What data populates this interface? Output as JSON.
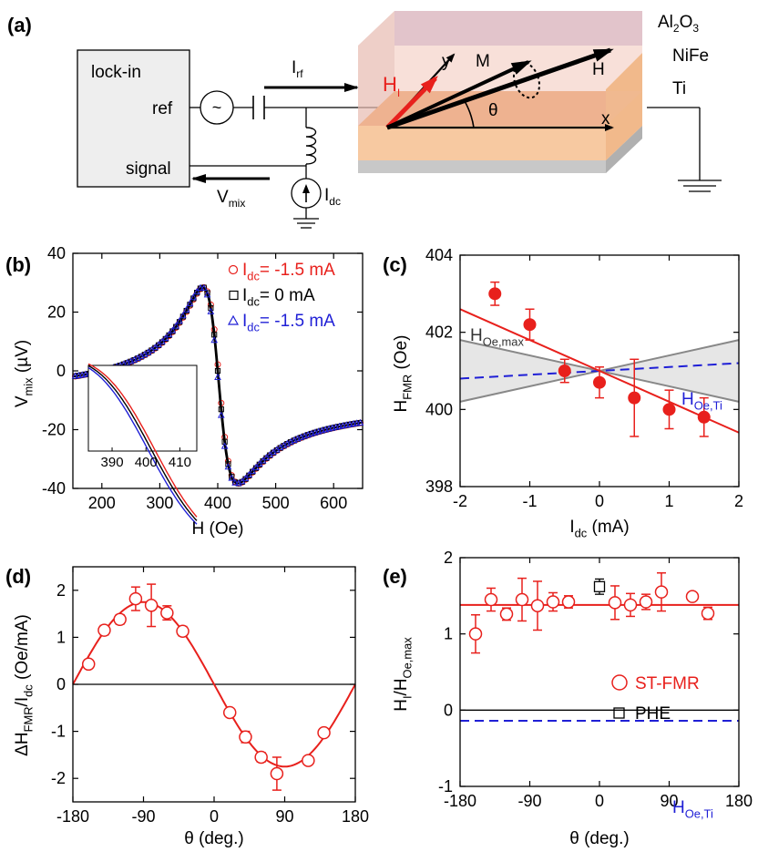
{
  "panel_labels": {
    "a": "(a)",
    "b": "(b)",
    "c": "(c)",
    "d": "(d)",
    "e": "(e)"
  },
  "schematic": {
    "lockin_title": "lock-in",
    "ref_label": "ref",
    "signal_label": "signal",
    "source_symbol": "~",
    "irf_main": "I",
    "irf_sub": "rf",
    "vmix_main": "V",
    "vmix_sub": "mix",
    "idc_main": "I",
    "idc_sub": "dc",
    "layer_top_main": "Al",
    "layer_top_sub1": "2",
    "layer_top_mid": "O",
    "layer_top_sub2": "3",
    "layer_mid": "NiFe",
    "layer_bottom": "Ti",
    "hi_main": "H",
    "hi_sub": "I",
    "y_label": "y",
    "m_label": "M",
    "h_label": "H",
    "x_label": "x",
    "theta_label": "θ",
    "colors": {
      "nife": "#f7c9a1",
      "al2o3": "#d9cfe8",
      "ti": "#c8c8c8",
      "hi_arrow": "#e8201c"
    }
  },
  "chart_data": [
    {
      "id": "b",
      "type": "line",
      "xlabel": "H (Oe)",
      "ylabel_main": "V",
      "ylabel_sub": "mix",
      "ylabel_tail": " (µV)",
      "xlim": [
        150,
        650
      ],
      "ylim": [
        -40,
        40
      ],
      "xticks": [
        "200",
        "300",
        "400",
        "500",
        "600"
      ],
      "yticks": [
        "-40",
        "-20",
        "0",
        "20",
        "40"
      ],
      "legend": [
        {
          "main": "I",
          "sub": "dc",
          "tail": "= -1.5 mA",
          "color": "#e8201c",
          "marker": "circle"
        },
        {
          "main": "I",
          "sub": "dc",
          "tail": "= 0 mA",
          "color": "#000000",
          "marker": "square"
        },
        {
          "main": "I",
          "sub": "dc",
          "tail": "= -1.5 mA",
          "color": "#1f1fd6",
          "marker": "triangle"
        }
      ],
      "series": [
        {
          "name": "-1.5 mA (red)",
          "color": "#e8201c",
          "resonance": 401,
          "linewidth": 30,
          "amplitude": 33
        },
        {
          "name": "0 mA",
          "color": "#000000",
          "resonance": 400,
          "linewidth": 30,
          "amplitude": 33
        },
        {
          "name": "-1.5 mA (blue)",
          "color": "#1f1fd6",
          "resonance": 399,
          "linewidth": 30,
          "amplitude": 33
        }
      ],
      "inset": {
        "xticks": [
          "390",
          "400",
          "410"
        ],
        "xlim": [
          383,
          415
        ]
      }
    },
    {
      "id": "c",
      "type": "scatter",
      "xlabel_main": "I",
      "xlabel_sub": "dc",
      "xlabel_tail": " (mA)",
      "ylabel_main": "H",
      "ylabel_sub": "FMR",
      "ylabel_tail": " (Oe)",
      "xlim": [
        -2,
        2
      ],
      "ylim": [
        398,
        404
      ],
      "xticks": [
        "-2",
        "-1",
        "0",
        "1",
        "2"
      ],
      "yticks": [
        "398",
        "400",
        "402",
        "404"
      ],
      "points": [
        {
          "x": -1.5,
          "y": 403.0,
          "err": 0.3
        },
        {
          "x": -1.0,
          "y": 402.2,
          "err": 0.4
        },
        {
          "x": -0.5,
          "y": 401.0,
          "err": 0.3
        },
        {
          "x": 0.0,
          "y": 400.7,
          "err": 0.4
        },
        {
          "x": 0.5,
          "y": 400.3,
          "err": 1.0
        },
        {
          "x": 1.0,
          "y": 400.0,
          "err": 0.5
        },
        {
          "x": 1.5,
          "y": 399.8,
          "err": 0.5
        }
      ],
      "fit": {
        "slope": -0.8,
        "intercept": 401.0,
        "color": "#e8201c"
      },
      "band": {
        "slope": 0.4,
        "intercept": 401.0,
        "color": "#888888"
      },
      "ti_line": {
        "slope": 0.1,
        "intercept": 401.0,
        "color": "#1f1fd6"
      },
      "annot_oemax_main": "H",
      "annot_oemax_sub": "Oe,max",
      "annot_oeti_main": "H",
      "annot_oeti_sub": "Oe,Ti"
    },
    {
      "id": "d",
      "type": "scatter",
      "xlabel": "θ (deg.)",
      "ylabel_main": "ΔH",
      "ylabel_sub": "FMR",
      "ylabel_mid": "/I",
      "ylabel_sub2": "dc",
      "ylabel_tail": " (Oe/mA)",
      "xlim": [
        -180,
        180
      ],
      "ylim": [
        -2.5,
        2.5
      ],
      "xticks": [
        "-180",
        "-90",
        "0",
        "90",
        "180"
      ],
      "yticks": [
        "-2",
        "-1",
        "0",
        "1",
        "2"
      ],
      "points": [
        {
          "x": -160,
          "y": 0.43,
          "err": 0.08
        },
        {
          "x": -140,
          "y": 1.15,
          "err": 0.1
        },
        {
          "x": -120,
          "y": 1.38,
          "err": 0.1
        },
        {
          "x": -100,
          "y": 1.82,
          "err": 0.25
        },
        {
          "x": -80,
          "y": 1.68,
          "err": 0.45
        },
        {
          "x": -60,
          "y": 1.52,
          "err": 0.15
        },
        {
          "x": -40,
          "y": 1.13,
          "err": 0.1
        },
        {
          "x": 20,
          "y": -0.6,
          "err": 0.08
        },
        {
          "x": 40,
          "y": -1.12,
          "err": 0.12
        },
        {
          "x": 60,
          "y": -1.55,
          "err": 0.1
        },
        {
          "x": 80,
          "y": -1.9,
          "err": 0.35
        },
        {
          "x": 120,
          "y": -1.62,
          "err": 0.06
        },
        {
          "x": 140,
          "y": -1.03,
          "err": 0.08
        }
      ],
      "fit": {
        "amplitude": 1.75,
        "color": "#e8201c"
      }
    },
    {
      "id": "e",
      "type": "scatter",
      "xlabel": "θ (deg.)",
      "ylabel_main": "H",
      "ylabel_sub": "I",
      "ylabel_mid": "/H",
      "ylabel_sub2": "Oe,max",
      "xlim": [
        -180,
        180
      ],
      "ylim": [
        -1,
        2
      ],
      "xticks": [
        "-180",
        "-90",
        "0",
        "90",
        "180"
      ],
      "yticks": [
        "-1",
        "0",
        "1",
        "2"
      ],
      "points": [
        {
          "x": -160,
          "y": 1.0,
          "err": 0.25
        },
        {
          "x": -140,
          "y": 1.45,
          "err": 0.15
        },
        {
          "x": -120,
          "y": 1.26,
          "err": 0.08
        },
        {
          "x": -100,
          "y": 1.45,
          "err": 0.28
        },
        {
          "x": -80,
          "y": 1.37,
          "err": 0.32
        },
        {
          "x": -60,
          "y": 1.42,
          "err": 0.12
        },
        {
          "x": -40,
          "y": 1.42,
          "err": 0.08
        },
        {
          "x": 20,
          "y": 1.41,
          "err": 0.22
        },
        {
          "x": 40,
          "y": 1.38,
          "err": 0.15
        },
        {
          "x": 60,
          "y": 1.42,
          "err": 0.1
        },
        {
          "x": 80,
          "y": 1.55,
          "err": 0.25
        },
        {
          "x": 120,
          "y": 1.49,
          "err": 0.05
        },
        {
          "x": 140,
          "y": 1.27,
          "err": 0.08
        }
      ],
      "phe_point": {
        "x": 0,
        "y": 1.62,
        "err": 0.1
      },
      "fit_level": 1.38,
      "ti_level": -0.14,
      "legend": [
        {
          "label": "ST-FMR",
          "color": "#e8201c",
          "marker": "circle"
        },
        {
          "label": "PHE",
          "color": "#000000",
          "marker": "square"
        }
      ],
      "annot_oeti_main": "H",
      "annot_oeti_sub": "Oe,Ti"
    }
  ]
}
